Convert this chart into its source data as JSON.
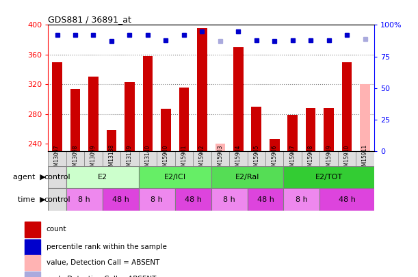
{
  "title": "GDS881 / 36891_at",
  "samples": [
    "GSM13097",
    "GSM13098",
    "GSM13099",
    "GSM13138",
    "GSM13139",
    "GSM13140",
    "GSM15900",
    "GSM15901",
    "GSM15902",
    "GSM15903",
    "GSM15904",
    "GSM15905",
    "GSM15906",
    "GSM15907",
    "GSM15908",
    "GSM15909",
    "GSM15910",
    "GSM15911"
  ],
  "counts": [
    350,
    314,
    330,
    258,
    323,
    358,
    287,
    316,
    396,
    240,
    370,
    290,
    246,
    279,
    288,
    288,
    350,
    320
  ],
  "percentile_ranks": [
    92,
    92,
    92,
    87,
    92,
    92,
    88,
    92,
    95,
    87,
    95,
    88,
    87,
    88,
    88,
    88,
    92,
    89
  ],
  "absent_flags": [
    false,
    false,
    false,
    false,
    false,
    false,
    false,
    false,
    false,
    true,
    false,
    false,
    false,
    false,
    false,
    false,
    false,
    true
  ],
  "ylim_left": [
    230,
    400
  ],
  "ylim_right": [
    0,
    100
  ],
  "yticks_left": [
    240,
    280,
    320,
    360,
    400
  ],
  "yticks_right": [
    0,
    25,
    50,
    75,
    100
  ],
  "bar_color": "#cc0000",
  "bar_absent_color": "#ffb3b3",
  "dot_color": "#0000cc",
  "dot_absent_color": "#aaaadd",
  "agent_groups": [
    {
      "label": "control",
      "start": 0,
      "end": 1,
      "color": "#dddddd"
    },
    {
      "label": "E2",
      "start": 1,
      "end": 5,
      "color": "#ccffcc"
    },
    {
      "label": "E2/ICI",
      "start": 5,
      "end": 9,
      "color": "#66ee66"
    },
    {
      "label": "E2/Ral",
      "start": 9,
      "end": 13,
      "color": "#55dd55"
    },
    {
      "label": "E2/TOT",
      "start": 13,
      "end": 18,
      "color": "#33cc33"
    }
  ],
  "time_groups": [
    {
      "label": "control",
      "start": 0,
      "end": 1,
      "color": "#dddddd"
    },
    {
      "label": "8 h",
      "start": 1,
      "end": 3,
      "color": "#ee88ee"
    },
    {
      "label": "48 h",
      "start": 3,
      "end": 5,
      "color": "#dd44dd"
    },
    {
      "label": "8 h",
      "start": 5,
      "end": 7,
      "color": "#ee88ee"
    },
    {
      "label": "48 h",
      "start": 7,
      "end": 9,
      "color": "#dd44dd"
    },
    {
      "label": "8 h",
      "start": 9,
      "end": 11,
      "color": "#ee88ee"
    },
    {
      "label": "48 h",
      "start": 11,
      "end": 13,
      "color": "#dd44dd"
    },
    {
      "label": "8 h",
      "start": 13,
      "end": 15,
      "color": "#ee88ee"
    },
    {
      "label": "48 h",
      "start": 15,
      "end": 18,
      "color": "#dd44dd"
    }
  ],
  "legend_items": [
    {
      "label": "count",
      "color": "#cc0000"
    },
    {
      "label": "percentile rank within the sample",
      "color": "#0000cc"
    },
    {
      "label": "value, Detection Call = ABSENT",
      "color": "#ffb3b3"
    },
    {
      "label": "rank, Detection Call = ABSENT",
      "color": "#aaaadd"
    }
  ],
  "grid_ticks": [
    280,
    320,
    360
  ]
}
